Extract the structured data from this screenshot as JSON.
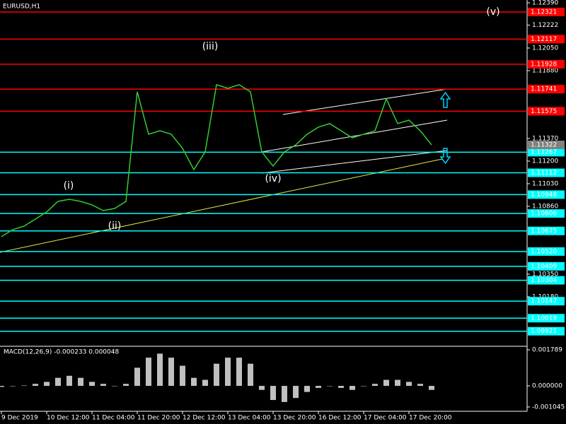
{
  "chart_data": [
    {
      "type": "line",
      "title": "EURUSD,H1",
      "color": "#32cd32",
      "categories": [
        "9 Dec 2019",
        null,
        null,
        null,
        "10 Dec 12:00",
        null,
        null,
        null,
        "11 Dec 04:00",
        null,
        null,
        null,
        "11 Dec 20:00",
        null,
        null,
        null,
        "12 Dec 12:00",
        null,
        null,
        null,
        "13 Dec 04:00",
        null,
        null,
        null,
        "13 Dec 20:00",
        null,
        null,
        null,
        "16 Dec 12:00",
        null,
        null,
        null,
        "17 Dec 04:00",
        null,
        null,
        null,
        "17 Dec 20:00",
        null,
        null
      ],
      "values": [
        1.10632,
        1.10685,
        1.10711,
        1.10764,
        1.10818,
        1.10897,
        1.10913,
        1.10897,
        1.10871,
        1.10828,
        1.10844,
        1.10897,
        1.11721,
        1.11402,
        1.11428,
        1.11402,
        1.11296,
        1.11136,
        1.11269,
        1.11774,
        1.11747,
        1.11774,
        1.11721,
        1.11269,
        1.11163,
        1.11269,
        1.11322,
        1.11402,
        1.11455,
        1.11482,
        1.11428,
        1.11375,
        1.11402,
        1.11428,
        1.11668,
        1.11482,
        1.11508,
        1.11428,
        1.11322
      ],
      "ylim": [
        1.09808,
        1.12411
      ],
      "yticks": [
        {
          "value": 1.1239,
          "label": "1.12390"
        },
        1.12222,
        {
          "value": 1.1205,
          "label": "1.12050"
        },
        {
          "value": 1.1188,
          "label": "1.11880"
        },
        {
          "value": 1.1137,
          "label": "1.11370"
        },
        {
          "value": 1.112,
          "label": "1.11200"
        },
        {
          "value": 1.1103,
          "label": "1.11030"
        },
        {
          "value": 1.1086,
          "label": "1.10860"
        },
        {
          "value": 1.1035,
          "label": "1.10350"
        },
        {
          "value": 1.1018,
          "label": "1.10180"
        }
      ],
      "levels": [
        {
          "value": 1.12321,
          "color": "#ff0000"
        },
        {
          "value": 1.12117,
          "color": "#ff0000"
        },
        {
          "value": 1.11928,
          "color": "#ff0000"
        },
        {
          "value": 1.11741,
          "color": "#ff0000"
        },
        {
          "value": 1.11575,
          "color": "#ff0000"
        },
        {
          "value": 1.11267,
          "color": "#00ffff"
        },
        {
          "value": 1.11112,
          "color": "#00ffff"
        },
        {
          "value": 1.10948,
          "color": "#00ffff"
        },
        {
          "value": 1.10806,
          "color": "#00ffff"
        },
        {
          "value": 1.10675,
          "color": "#00ffff"
        },
        {
          "value": 1.1052,
          "label": "1.10520",
          "color": "#00ffff"
        },
        {
          "value": 1.10409,
          "color": "#00ffff"
        },
        {
          "value": 1.10304,
          "color": "#00ffff"
        },
        {
          "value": 1.10147,
          "color": "#00ffff"
        },
        {
          "value": 1.10019,
          "color": "#00ffff"
        },
        {
          "value": 1.09921,
          "color": "#00ffff"
        }
      ],
      "current": 1.11322,
      "annotations": [
        "(i)",
        "(ii)",
        "(iii)",
        "(iv)",
        "(v)"
      ]
    },
    {
      "type": "bar",
      "title": "MACD(12,26,9) -0.000233 0.000048",
      "color": "#c0c0c0",
      "values": [
        -5e-05,
        0,
        2e-05,
        0.0001,
        0.0002,
        0.0004,
        0.0005,
        0.0004,
        0.0002,
        0.0001,
        0,
        0.0001,
        0.0009,
        0.0014,
        0.0016,
        0.0014,
        0.001,
        0.0004,
        0.0003,
        0.0011,
        0.0014,
        0.0014,
        0.0011,
        -0.0002,
        -0.0007,
        -0.0008,
        -0.0006,
        -0.0003,
        -0.0001,
        0,
        -0.0001,
        -0.0002,
        0,
        0.0001,
        0.0003,
        0.0003,
        0.0002,
        0.0001,
        -0.0002
      ],
      "ylim": [
        -0.00126,
        0.00193
      ],
      "yticks": [
        0.001789,
        {
          "value": 0,
          "label": "0.000000"
        },
        -0.001045
      ]
    }
  ]
}
